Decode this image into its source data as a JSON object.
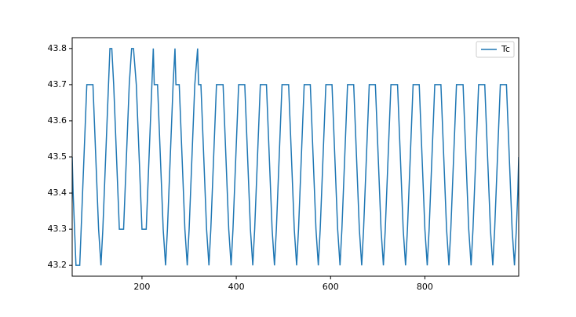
{
  "chart_data": {
    "type": "line",
    "x": [
      52,
      54,
      57,
      60,
      68,
      71,
      74,
      77,
      80,
      83,
      96,
      99,
      102,
      105,
      108,
      113,
      117,
      120,
      123,
      126,
      129,
      132,
      136,
      140,
      143,
      146,
      149,
      152,
      161,
      164,
      167,
      170,
      173,
      178,
      182,
      188,
      191,
      194,
      197,
      200,
      209,
      212,
      215,
      218,
      221,
      224,
      226,
      233,
      236,
      239,
      242,
      245,
      250,
      254,
      257,
      260,
      263,
      266,
      270,
      272,
      279,
      282,
      285,
      288,
      291,
      296,
      300,
      303,
      306,
      309,
      312,
      318,
      320,
      325,
      328,
      331,
      334,
      337,
      342,
      346,
      349,
      352,
      355,
      358,
      372,
      375,
      378,
      381,
      384,
      389,
      393,
      396,
      399,
      402,
      405,
      418,
      421,
      424,
      427,
      430,
      435,
      439,
      442,
      445,
      448,
      451,
      464,
      467,
      470,
      473,
      476,
      481,
      485,
      488,
      491,
      494,
      497,
      511,
      514,
      517,
      520,
      523,
      528,
      532,
      535,
      538,
      541,
      544,
      557,
      560,
      563,
      566,
      569,
      574,
      578,
      581,
      584,
      587,
      590,
      603,
      606,
      609,
      612,
      615,
      620,
      624,
      627,
      630,
      633,
      636,
      649,
      652,
      655,
      658,
      661,
      666,
      670,
      673,
      676,
      679,
      682,
      695,
      698,
      701,
      704,
      707,
      712,
      716,
      719,
      722,
      725,
      728,
      742,
      745,
      748,
      751,
      754,
      759,
      763,
      766,
      769,
      772,
      775,
      788,
      791,
      794,
      797,
      800,
      805,
      809,
      812,
      815,
      818,
      821,
      834,
      837,
      840,
      843,
      846,
      851,
      855,
      858,
      861,
      864,
      867,
      881,
      884,
      887,
      890,
      893,
      898,
      902,
      905,
      908,
      911,
      914,
      927,
      930,
      933,
      936,
      939,
      944,
      948,
      951,
      954,
      957,
      960,
      973,
      976,
      979,
      982,
      985,
      990,
      994,
      997,
      999
    ],
    "series": [
      {
        "name": "Tc",
        "color": "#1f77b4",
        "values": [
          43.5,
          43.4,
          43.3,
          43.2,
          43.2,
          43.3,
          43.4,
          43.5,
          43.6,
          43.7,
          43.7,
          43.6,
          43.5,
          43.4,
          43.3,
          43.2,
          43.3,
          43.4,
          43.5,
          43.6,
          43.7,
          43.8,
          43.8,
          43.7,
          43.6,
          43.5,
          43.4,
          43.3,
          43.3,
          43.4,
          43.5,
          43.6,
          43.7,
          43.8,
          43.8,
          43.7,
          43.6,
          43.5,
          43.4,
          43.3,
          43.3,
          43.4,
          43.5,
          43.6,
          43.7,
          43.8,
          43.7,
          43.7,
          43.6,
          43.5,
          43.4,
          43.3,
          43.2,
          43.3,
          43.4,
          43.5,
          43.6,
          43.7,
          43.8,
          43.7,
          43.7,
          43.6,
          43.5,
          43.4,
          43.3,
          43.2,
          43.3,
          43.4,
          43.5,
          43.6,
          43.7,
          43.8,
          43.7,
          43.7,
          43.6,
          43.5,
          43.4,
          43.3,
          43.2,
          43.3,
          43.4,
          43.5,
          43.6,
          43.7,
          43.7,
          43.6,
          43.5,
          43.4,
          43.3,
          43.2,
          43.3,
          43.4,
          43.5,
          43.6,
          43.7,
          43.7,
          43.6,
          43.5,
          43.4,
          43.3,
          43.2,
          43.3,
          43.4,
          43.5,
          43.6,
          43.7,
          43.7,
          43.6,
          43.5,
          43.4,
          43.3,
          43.2,
          43.3,
          43.4,
          43.5,
          43.6,
          43.7,
          43.7,
          43.6,
          43.5,
          43.4,
          43.3,
          43.2,
          43.3,
          43.4,
          43.5,
          43.6,
          43.7,
          43.7,
          43.6,
          43.5,
          43.4,
          43.3,
          43.2,
          43.3,
          43.4,
          43.5,
          43.6,
          43.7,
          43.7,
          43.6,
          43.5,
          43.4,
          43.3,
          43.2,
          43.3,
          43.4,
          43.5,
          43.6,
          43.7,
          43.7,
          43.6,
          43.5,
          43.4,
          43.3,
          43.2,
          43.3,
          43.4,
          43.5,
          43.6,
          43.7,
          43.7,
          43.6,
          43.5,
          43.4,
          43.3,
          43.2,
          43.3,
          43.4,
          43.5,
          43.6,
          43.7,
          43.7,
          43.6,
          43.5,
          43.4,
          43.3,
          43.2,
          43.3,
          43.4,
          43.5,
          43.6,
          43.7,
          43.7,
          43.6,
          43.5,
          43.4,
          43.3,
          43.2,
          43.3,
          43.4,
          43.5,
          43.6,
          43.7,
          43.7,
          43.6,
          43.5,
          43.4,
          43.3,
          43.2,
          43.3,
          43.4,
          43.5,
          43.6,
          43.7,
          43.7,
          43.6,
          43.5,
          43.4,
          43.3,
          43.2,
          43.3,
          43.4,
          43.5,
          43.6,
          43.7,
          43.7,
          43.6,
          43.5,
          43.4,
          43.3,
          43.2,
          43.3,
          43.4,
          43.5,
          43.6,
          43.7,
          43.7,
          43.6,
          43.5,
          43.4,
          43.3,
          43.2,
          43.3,
          43.4,
          43.5
        ]
      }
    ],
    "xlim": [
      52,
      999
    ],
    "xticks": [
      200,
      400,
      600,
      800
    ],
    "ylim": [
      43.17,
      43.83
    ],
    "yticks": [
      43.2,
      43.3,
      43.4,
      43.5,
      43.6,
      43.7,
      43.8
    ],
    "grid": false,
    "legend": "upper right"
  }
}
